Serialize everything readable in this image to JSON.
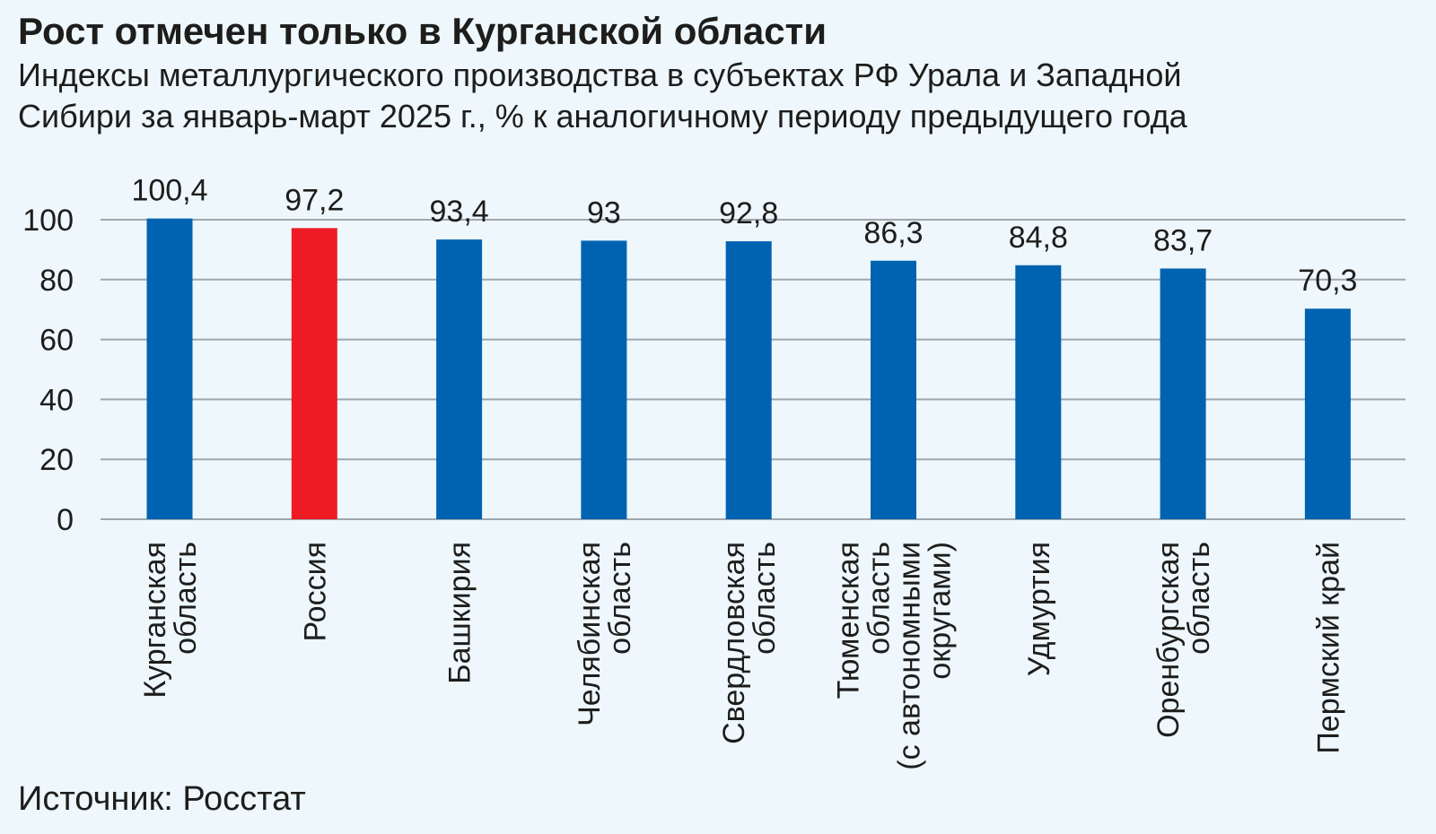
{
  "chart_data": {
    "type": "bar",
    "title": "Рост отмечен только в Курганской области",
    "subtitle": [
      "Индексы металлургического производства в субъектах РФ Урала и Западной",
      "Сибири за январь-март 2025 г., % к аналогичному периоду предыдущего года"
    ],
    "categories": [
      [
        "Курганская",
        "область"
      ],
      [
        "Россия"
      ],
      [
        "Башкирия"
      ],
      [
        "Челябинская",
        "область"
      ],
      [
        "Свердловская",
        "область"
      ],
      [
        "Тюменская",
        "область",
        "(с автономными",
        "округами)"
      ],
      [
        "Удмуртия"
      ],
      [
        "Оренбургская",
        "область"
      ],
      [
        "Пермский край"
      ]
    ],
    "values": [
      100.4,
      97.2,
      93.4,
      93,
      92.8,
      86.3,
      84.8,
      83.7,
      70.3
    ],
    "value_labels": [
      "100,4",
      "97,2",
      "93,4",
      "93",
      "92,8",
      "86,3",
      "84,8",
      "83,7",
      "70,3"
    ],
    "bar_colors": [
      "#0063b2",
      "#ed1c24",
      "#0063b2",
      "#0063b2",
      "#0063b2",
      "#0063b2",
      "#0063b2",
      "#0063b2",
      "#0063b2"
    ],
    "yticks": [
      0,
      20,
      40,
      60,
      80,
      100
    ],
    "ylim": [
      0,
      100
    ],
    "grid": true,
    "grid_color": "#9ea7ae"
  },
  "source": "Источник: Росстат"
}
